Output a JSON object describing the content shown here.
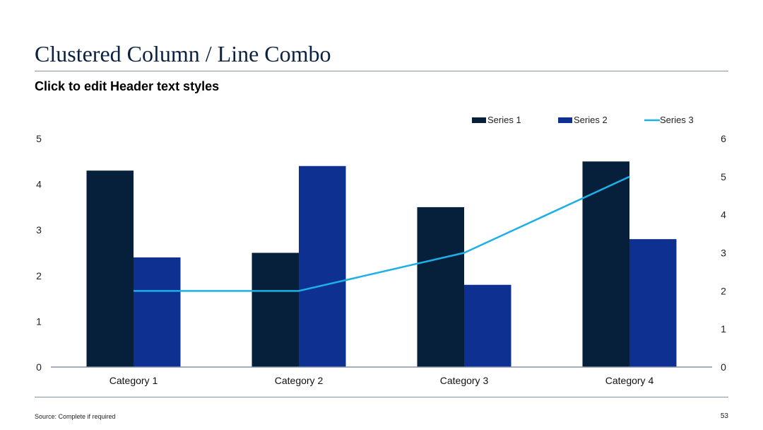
{
  "slide": {
    "title": "Clustered Column / Line Combo",
    "header": "Click to edit Header text styles",
    "source": "Source: Complete if required",
    "page_number": "53"
  },
  "chart_data": {
    "type": "bar",
    "categories": [
      "Category 1",
      "Category 2",
      "Category 3",
      "Category 4"
    ],
    "series": [
      {
        "name": "Series 1",
        "type": "bar",
        "axis": "primary",
        "color": "#061f3a",
        "values": [
          4.3,
          2.5,
          3.5,
          4.5
        ]
      },
      {
        "name": "Series 2",
        "type": "bar",
        "axis": "primary",
        "color": "#0d3091",
        "values": [
          2.4,
          4.4,
          1.8,
          2.8
        ]
      },
      {
        "name": "Series 3",
        "type": "line",
        "axis": "secondary",
        "color": "#1db0e6",
        "values": [
          2,
          2,
          3,
          5
        ]
      }
    ],
    "ylim": [
      0,
      5
    ],
    "y_ticks": [
      "0",
      "1",
      "2",
      "3",
      "4",
      "5"
    ],
    "y2lim": [
      0,
      6
    ],
    "y2_ticks": [
      "0",
      "1",
      "2",
      "3",
      "4",
      "5",
      "6"
    ],
    "legend": "top-right",
    "grid": false
  }
}
